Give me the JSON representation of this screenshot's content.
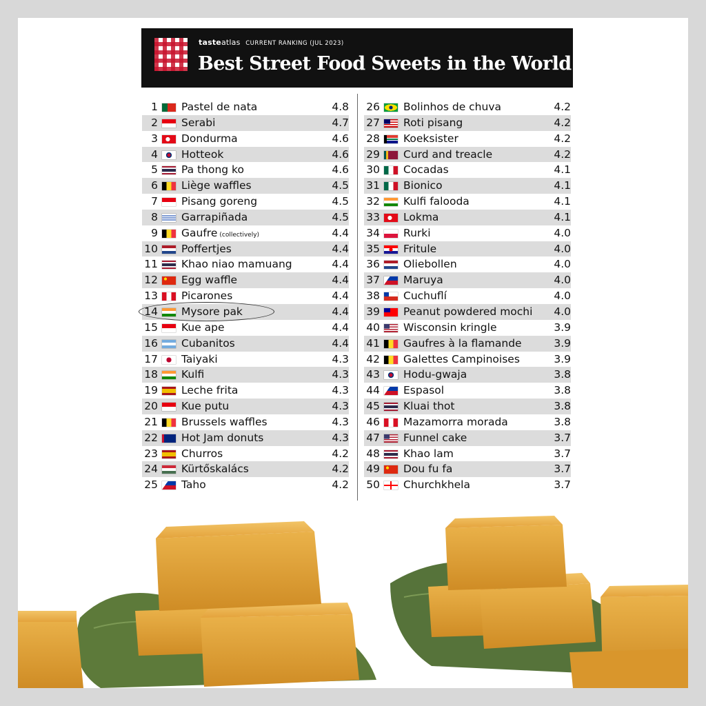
{
  "header": {
    "brand_taste": "taste",
    "brand_atlas": "atlas",
    "subtitle": "CURRENT RANKING (JUL 2023)",
    "title": "Best Street Food Sweets in the World"
  },
  "rankings_left": [
    {
      "rank": "1",
      "name": "Pastel de nata",
      "score": "4.8",
      "flag": "portugal"
    },
    {
      "rank": "2",
      "name": "Serabi",
      "score": "4.7",
      "flag": "indonesia"
    },
    {
      "rank": "3",
      "name": "Dondurma",
      "score": "4.6",
      "flag": "turkey"
    },
    {
      "rank": "4",
      "name": "Hotteok",
      "score": "4.6",
      "flag": "south-korea"
    },
    {
      "rank": "5",
      "name": "Pa thong ko",
      "score": "4.6",
      "flag": "thailand"
    },
    {
      "rank": "6",
      "name": "Liège waffles",
      "score": "4.5",
      "flag": "belgium"
    },
    {
      "rank": "7",
      "name": "Pisang goreng",
      "score": "4.5",
      "flag": "indonesia"
    },
    {
      "rank": "8",
      "name": "Garrapiñada",
      "score": "4.5",
      "flag": "uruguay"
    },
    {
      "rank": "9",
      "name": "Gaufre",
      "note": "(collectively)",
      "score": "4.4",
      "flag": "belgium"
    },
    {
      "rank": "10",
      "name": "Poffertjes",
      "score": "4.4",
      "flag": "netherlands"
    },
    {
      "rank": "11",
      "name": "Khao niao mamuang",
      "score": "4.4",
      "flag": "thailand"
    },
    {
      "rank": "12",
      "name": "Egg waffle",
      "score": "4.4",
      "flag": "china"
    },
    {
      "rank": "13",
      "name": "Picarones",
      "score": "4.4",
      "flag": "peru"
    },
    {
      "rank": "14",
      "name": "Mysore pak",
      "score": "4.4",
      "flag": "india"
    },
    {
      "rank": "15",
      "name": "Kue ape",
      "score": "4.4",
      "flag": "indonesia"
    },
    {
      "rank": "16",
      "name": "Cubanitos",
      "score": "4.4",
      "flag": "argentina"
    },
    {
      "rank": "17",
      "name": "Taiyaki",
      "score": "4.3",
      "flag": "japan"
    },
    {
      "rank": "18",
      "name": "Kulfi",
      "score": "4.3",
      "flag": "india"
    },
    {
      "rank": "19",
      "name": "Leche frita",
      "score": "4.3",
      "flag": "spain"
    },
    {
      "rank": "20",
      "name": "Kue putu",
      "score": "4.3",
      "flag": "indonesia"
    },
    {
      "rank": "21",
      "name": "Brussels waffles",
      "score": "4.3",
      "flag": "belgium"
    },
    {
      "rank": "22",
      "name": "Hot Jam donuts",
      "score": "4.3",
      "flag": "australia"
    },
    {
      "rank": "23",
      "name": "Churros",
      "score": "4.2",
      "flag": "spain"
    },
    {
      "rank": "24",
      "name": "Kürtőskalács",
      "score": "4.2",
      "flag": "hungary"
    },
    {
      "rank": "25",
      "name": "Taho",
      "score": "4.2",
      "flag": "philippines"
    }
  ],
  "rankings_right": [
    {
      "rank": "26",
      "name": "Bolinhos de chuva",
      "score": "4.2",
      "flag": "brazil"
    },
    {
      "rank": "27",
      "name": "Roti pisang",
      "score": "4.2",
      "flag": "malaysia"
    },
    {
      "rank": "28",
      "name": "Koeksister",
      "score": "4.2",
      "flag": "south-africa"
    },
    {
      "rank": "29",
      "name": "Curd and treacle",
      "score": "4.2",
      "flag": "sri-lanka"
    },
    {
      "rank": "30",
      "name": "Cocadas",
      "score": "4.1",
      "flag": "mexico"
    },
    {
      "rank": "31",
      "name": "Bionico",
      "score": "4.1",
      "flag": "mexico"
    },
    {
      "rank": "32",
      "name": "Kulfi falooda",
      "score": "4.1",
      "flag": "india"
    },
    {
      "rank": "33",
      "name": "Lokma",
      "score": "4.1",
      "flag": "turkey"
    },
    {
      "rank": "34",
      "name": "Rurki",
      "score": "4.0",
      "flag": "poland"
    },
    {
      "rank": "35",
      "name": "Fritule",
      "score": "4.0",
      "flag": "croatia"
    },
    {
      "rank": "36",
      "name": "Oliebollen",
      "score": "4.0",
      "flag": "netherlands"
    },
    {
      "rank": "37",
      "name": "Maruya",
      "score": "4.0",
      "flag": "philippines"
    },
    {
      "rank": "38",
      "name": "Cuchuflí",
      "score": "4.0",
      "flag": "chile"
    },
    {
      "rank": "39",
      "name": "Peanut powdered mochi",
      "score": "4.0",
      "flag": "taiwan"
    },
    {
      "rank": "40",
      "name": "Wisconsin kringle",
      "score": "3.9",
      "flag": "usa"
    },
    {
      "rank": "41",
      "name": "Gaufres à la flamande",
      "score": "3.9",
      "flag": "belgium"
    },
    {
      "rank": "42",
      "name": "Galettes Campinoises",
      "score": "3.9",
      "flag": "belgium"
    },
    {
      "rank": "43",
      "name": "Hodu-gwaja",
      "score": "3.8",
      "flag": "south-korea"
    },
    {
      "rank": "44",
      "name": "Espasol",
      "score": "3.8",
      "flag": "philippines"
    },
    {
      "rank": "45",
      "name": "Kluai thot",
      "score": "3.8",
      "flag": "thailand"
    },
    {
      "rank": "46",
      "name": "Mazamorra morada",
      "score": "3.8",
      "flag": "peru"
    },
    {
      "rank": "47",
      "name": "Funnel cake",
      "score": "3.7",
      "flag": "usa"
    },
    {
      "rank": "48",
      "name": "Khao lam",
      "score": "3.7",
      "flag": "thailand"
    },
    {
      "rank": "49",
      "name": "Dou fu fa",
      "score": "3.7",
      "flag": "china"
    },
    {
      "rank": "50",
      "name": "Churchkhela",
      "score": "3.7",
      "flag": "georgia"
    }
  ],
  "highlighted_rank": "14",
  "colors": {
    "banner": "#111111",
    "stripe": "#dcdcdc",
    "logo_red": "#c8142d",
    "sweet": "#e0a43a",
    "leaf": "#5d7a3a"
  }
}
